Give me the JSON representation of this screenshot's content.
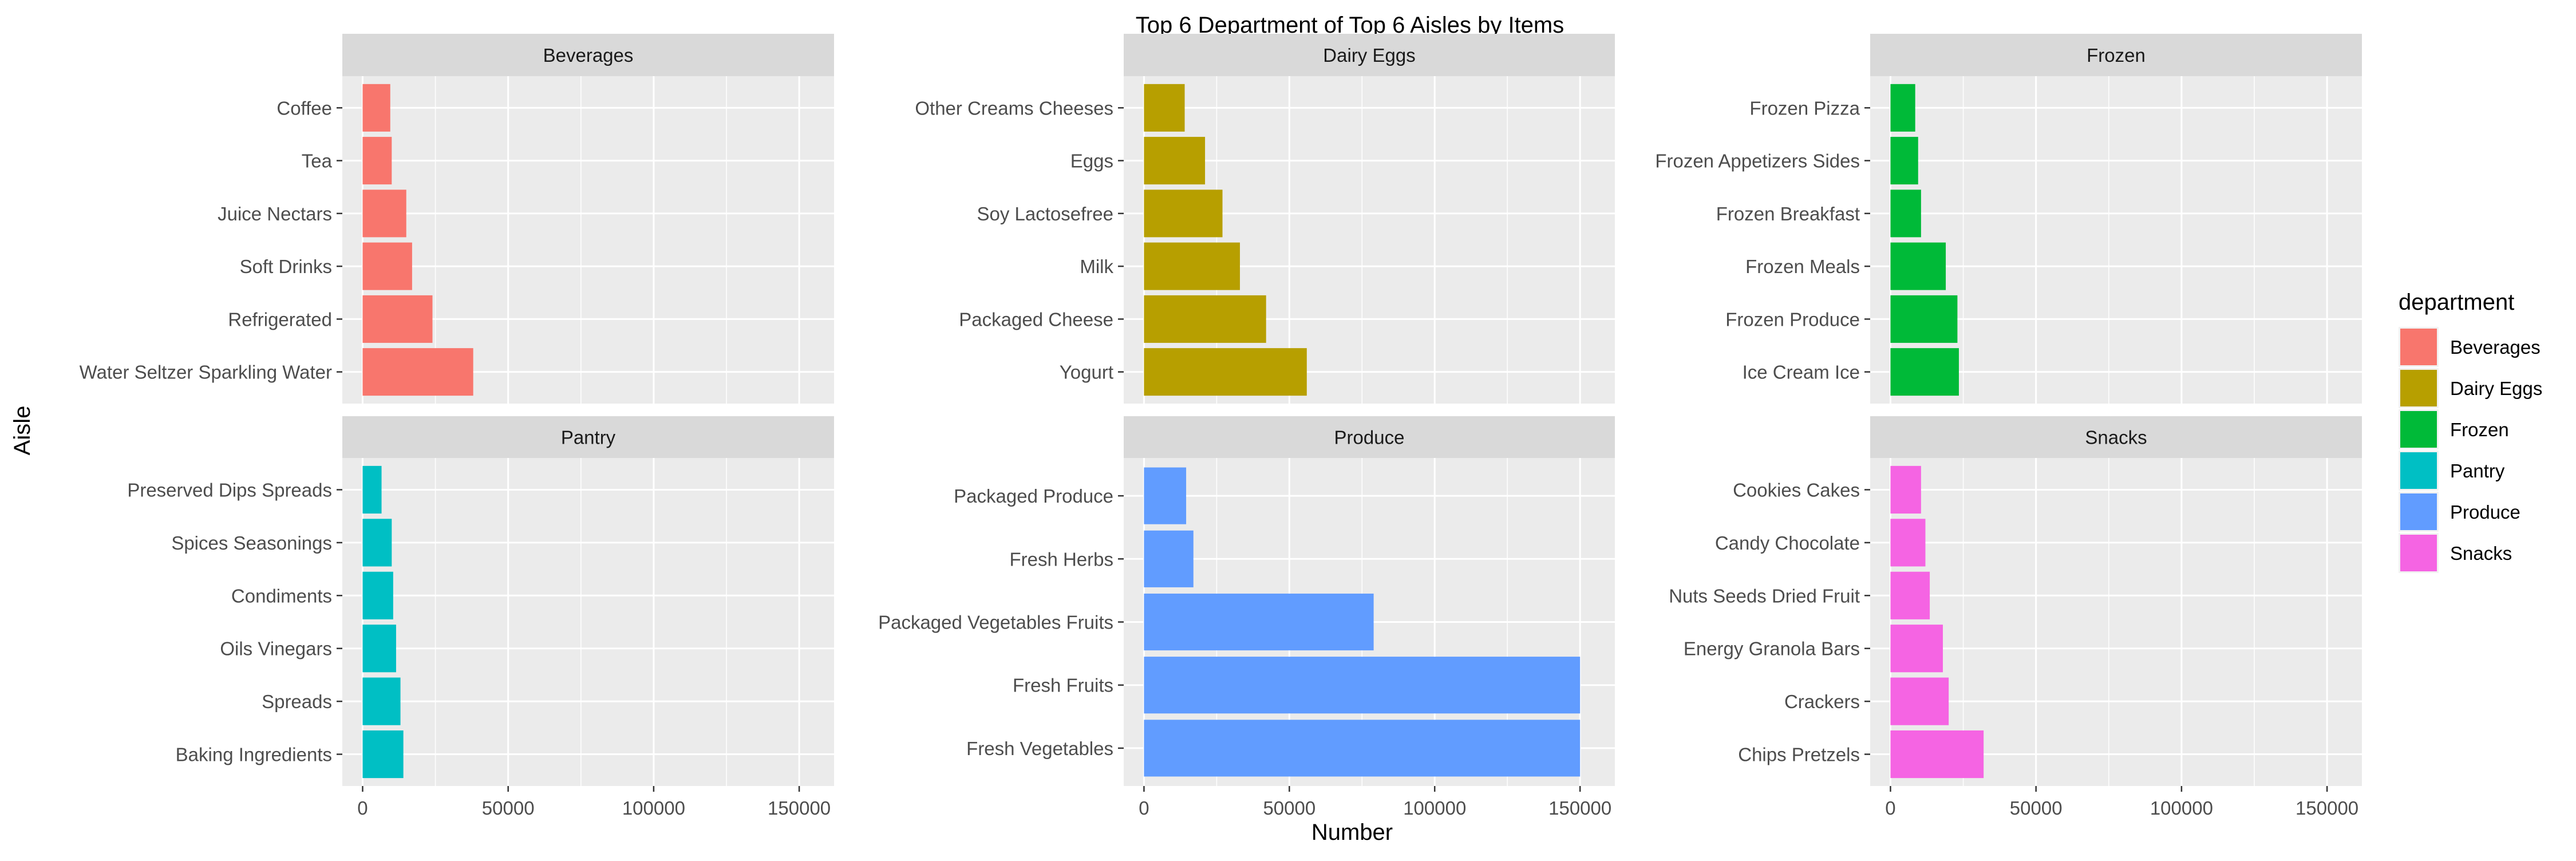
{
  "chart_data": {
    "type": "bar",
    "orientation": "horizontal",
    "layout": "facet-grid 2x3, free y scales",
    "title": "Top 6 Department of Top 6 Aisles by Items",
    "xlabel": "Number",
    "ylabel": "Aisle",
    "xlim": [
      0,
      155000
    ],
    "x_ticks": [
      0,
      50000,
      100000,
      150000
    ],
    "x_tick_labels": [
      "0",
      "50000",
      "100000",
      "150000"
    ],
    "grid": true,
    "legend": {
      "title": "department",
      "position": "right",
      "entries": [
        {
          "name": "Beverages",
          "color": "#F8766D"
        },
        {
          "name": "Dairy Eggs",
          "color": "#B79F00"
        },
        {
          "name": "Frozen",
          "color": "#00BA38"
        },
        {
          "name": "Pantry",
          "color": "#00BFC4"
        },
        {
          "name": "Produce",
          "color": "#619CFF"
        },
        {
          "name": "Snacks",
          "color": "#F564E3"
        }
      ]
    },
    "facets": [
      {
        "name": "Beverages",
        "color": "#F8766D",
        "categories": [
          "Coffee",
          "Tea",
          "Juice Nectars",
          "Soft Drinks",
          "Refrigerated",
          "Water Seltzer Sparkling Water"
        ],
        "values": [
          9500,
          10000,
          15000,
          17000,
          24000,
          38000
        ]
      },
      {
        "name": "Dairy Eggs",
        "color": "#B79F00",
        "categories": [
          "Other Creams Cheeses",
          "Eggs",
          "Soy Lactosefree",
          "Milk",
          "Packaged Cheese",
          "Yogurt"
        ],
        "values": [
          14000,
          21000,
          27000,
          33000,
          42000,
          56000
        ]
      },
      {
        "name": "Frozen",
        "color": "#00BA38",
        "categories": [
          "Frozen Pizza",
          "Frozen Appetizers Sides",
          "Frozen Breakfast",
          "Frozen Meals",
          "Frozen Produce",
          "Ice Cream Ice"
        ],
        "values": [
          8500,
          9500,
          10500,
          19000,
          23000,
          23500
        ]
      },
      {
        "name": "Pantry",
        "color": "#00BFC4",
        "categories": [
          "Preserved Dips Spreads",
          "Spices Seasonings",
          "Condiments",
          "Oils Vinegars",
          "Spreads",
          "Baking Ingredients"
        ],
        "values": [
          6500,
          10000,
          10500,
          11500,
          13000,
          14000
        ]
      },
      {
        "name": "Produce",
        "color": "#619CFF",
        "categories": [
          "Packaged Produce",
          "Fresh Herbs",
          "Packaged Vegetables Fruits",
          "Fresh Fruits",
          "Fresh Vegetables"
        ],
        "values": [
          14500,
          17000,
          79000,
          150000,
          150000
        ]
      },
      {
        "name": "Snacks",
        "color": "#F564E3",
        "categories": [
          "Cookies Cakes",
          "Candy Chocolate",
          "Nuts Seeds Dried Fruit",
          "Energy Granola Bars",
          "Crackers",
          "Chips Pretzels"
        ],
        "values": [
          10500,
          12000,
          13500,
          18000,
          20000,
          32000
        ]
      }
    ]
  }
}
